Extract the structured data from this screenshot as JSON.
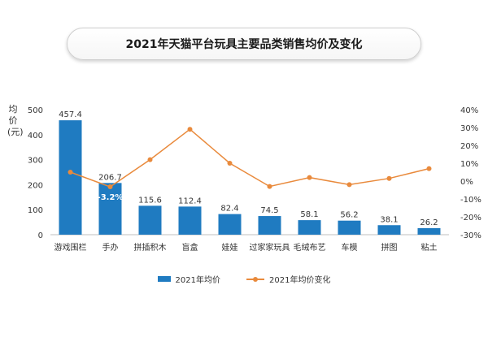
{
  "title": "2021年天猫平台玩具主要品类销售均价及变化",
  "legend": {
    "bar_label": "2021年均价",
    "line_label": "2021年均价变化"
  },
  "colors": {
    "bar": "#1f7bc1",
    "line": "#e98a3c"
  },
  "chart_data": {
    "type": "bar",
    "title": "2021年天猫平台玩具主要品类销售均价及变化",
    "ylabel": "均价(元)",
    "categories": [
      "游戏围栏",
      "手办",
      "拼插积木",
      "盲盒",
      "娃娃",
      "过家家玩具",
      "毛绒布艺",
      "车模",
      "拼图",
      "粘土"
    ],
    "series": [
      {
        "name": "2021年均价",
        "type": "bar",
        "axis": "left",
        "values": [
          457.4,
          206.7,
          115.6,
          112.4,
          82.4,
          74.5,
          58.1,
          56.2,
          38.1,
          26.2
        ],
        "data_labels": [
          "457.4",
          "206.7",
          "115.6",
          "112.4",
          "82.4",
          "74.5",
          "58.1",
          "56.2",
          "38.1",
          "26.2"
        ]
      },
      {
        "name": "2021年均价变化",
        "type": "line",
        "axis": "right",
        "values": [
          5,
          -3.2,
          12,
          29,
          10,
          -3,
          2,
          -2,
          1.5,
          7
        ]
      }
    ],
    "annotation": "-3.2%",
    "left_ylim": [
      0,
      500
    ],
    "left_ticks": [
      "0",
      "100",
      "200",
      "300",
      "400",
      "500"
    ],
    "right_ylim": [
      -30,
      40
    ],
    "right_ticks": [
      "-30%",
      "-20%",
      "-10%",
      "0%",
      "10%",
      "20%",
      "30%",
      "40%"
    ],
    "grid": false,
    "legend_position": "bottom"
  }
}
